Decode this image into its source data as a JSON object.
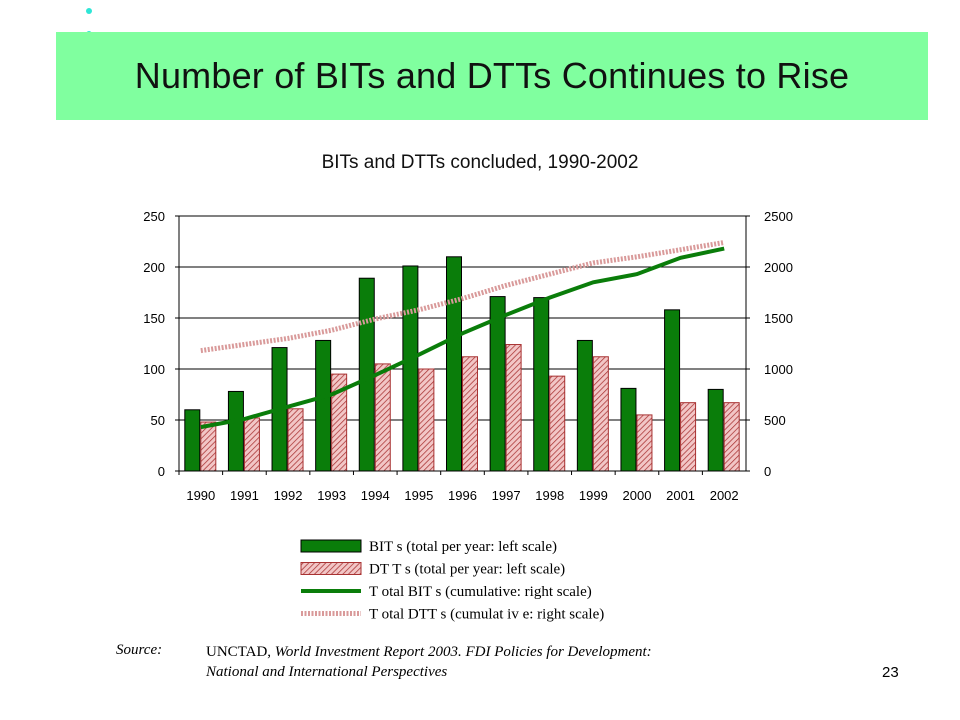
{
  "title": "Number of BITs and DTTs Continues to Rise",
  "subtitle": "BITs and DTTs concluded, 1990-2002",
  "colors": {
    "band": "#80ff9f",
    "bullet": "#2ee6d6",
    "bit": "#0a7d0a",
    "dtt_fill": "#f2c6c6",
    "dtt_stroke": "#a83232",
    "dtt_line": "#d99a9a"
  },
  "chart_data": {
    "type": "bar",
    "categories": [
      "1990",
      "1991",
      "1992",
      "1993",
      "1994",
      "1995",
      "1996",
      "1997",
      "1998",
      "1999",
      "2000",
      "2001",
      "2002"
    ],
    "series": [
      {
        "name": "BIT s (total per year: left scale)",
        "kind": "bar",
        "axis": "left",
        "values": [
          60,
          78,
          121,
          128,
          189,
          201,
          210,
          171,
          170,
          128,
          81,
          158,
          80
        ]
      },
      {
        "name": "DT T s (total per year: left scale)",
        "kind": "bar",
        "axis": "left",
        "values": [
          48,
          52,
          61,
          95,
          105,
          100,
          112,
          124,
          93,
          112,
          55,
          67,
          67
        ]
      },
      {
        "name": "T otal BIT s (cumulative: right scale)",
        "kind": "line",
        "axis": "right",
        "values": [
          430,
          510,
          630,
          750,
          940,
          1140,
          1350,
          1530,
          1700,
          1850,
          1930,
          2090,
          2180
        ]
      },
      {
        "name": "T otal DTT s (cumulat iv e: right scale)",
        "kind": "line",
        "axis": "right",
        "values": [
          1180,
          1240,
          1300,
          1380,
          1490,
          1580,
          1690,
          1820,
          1930,
          2040,
          2100,
          2170,
          2240
        ]
      }
    ],
    "left_axis": {
      "ylim": [
        0,
        250
      ],
      "ticks": [
        "0",
        "50",
        "100",
        "150",
        "200",
        "250"
      ]
    },
    "right_axis": {
      "ylim": [
        0,
        2500
      ],
      "ticks": [
        "0",
        "500",
        "1000",
        "1500",
        "2000",
        "2500"
      ]
    },
    "grid": true,
    "legend": "bottom"
  },
  "source": {
    "label": "Source:",
    "org": "UNCTAD,",
    "title_line1": "World Investment Report 2003.  FDI Policies for Development:",
    "title_line2": "National and International Perspectives"
  },
  "page_number": "23"
}
